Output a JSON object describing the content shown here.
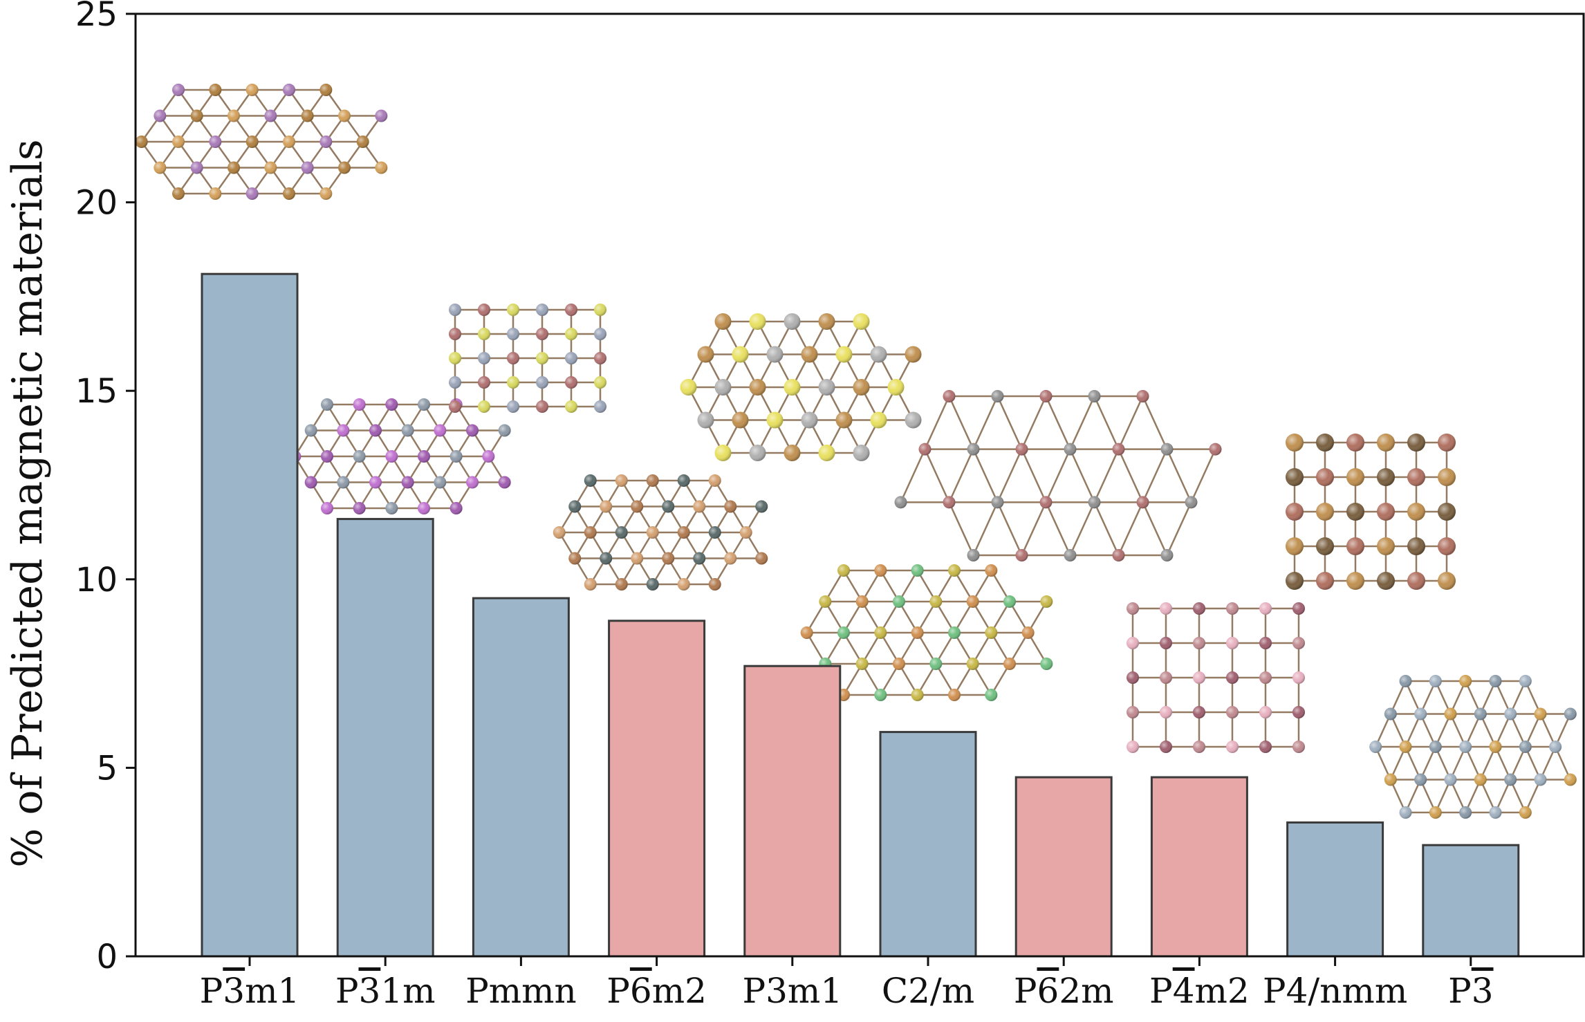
{
  "chart_data": {
    "type": "bar",
    "ylabel": "% of Predicted magnetic materials",
    "xlabel": "",
    "ylim": [
      0,
      25
    ],
    "yticks": [
      0,
      5,
      10,
      15,
      20,
      25
    ],
    "grid": false,
    "categories": [
      {
        "name": "P",
        "over": "3",
        "rest": "m1"
      },
      {
        "name": "P",
        "over": "3",
        "rest": "1m"
      },
      {
        "name": "Pmmn",
        "over": "",
        "rest": ""
      },
      {
        "name": "P",
        "over": "6",
        "rest": "m2"
      },
      {
        "name": "P3m1",
        "over": "",
        "rest": ""
      },
      {
        "name": "C2/m",
        "over": "",
        "rest": ""
      },
      {
        "name": "P",
        "over": "6",
        "rest": "2m"
      },
      {
        "name": "P",
        "over": "4",
        "rest": "m2"
      },
      {
        "name": "P4/nmm",
        "over": "",
        "rest": ""
      },
      {
        "name": "P",
        "over": "3",
        "rest": ""
      }
    ],
    "values": [
      18.1,
      11.6,
      9.5,
      8.9,
      7.7,
      5.95,
      4.75,
      4.75,
      3.55,
      2.95
    ],
    "bar_colors": [
      "#9db5c8",
      "#9db5c8",
      "#9db5c8",
      "#e8a7a7",
      "#e8a7a7",
      "#9db5c8",
      "#e8a7a7",
      "#e8a7a7",
      "#9db5c8",
      "#9db5c8"
    ],
    "colors": {
      "blue_bar": "#9db5c8",
      "red_bar": "#e8a7a7",
      "bar_edge": "#3a3a3a",
      "axis": "#111111"
    },
    "structure_insets": [
      {
        "bar": 0,
        "lattice": "honeycomb",
        "atoms": [
          "#d4a05a",
          "#a87ab8",
          "#b08040"
        ]
      },
      {
        "bar": 1,
        "lattice": "honeycomb",
        "atoms": [
          "#a05cb0",
          "#8e9aa8",
          "#c070d0"
        ]
      },
      {
        "bar": 2,
        "lattice": "rectangular",
        "atoms": [
          "#9aa4b8",
          "#b07070",
          "#d8d860"
        ]
      },
      {
        "bar": 3,
        "lattice": "hexagonal-dense",
        "atoms": [
          "#b07a50",
          "#5a6a6a",
          "#d4a070"
        ]
      },
      {
        "bar": 4,
        "lattice": "honeycomb",
        "atoms": [
          "#b0b0b0",
          "#c09050",
          "#e8e060"
        ]
      },
      {
        "bar": 5,
        "lattice": "honeycomb",
        "atoms": [
          "#70c080",
          "#c8b848",
          "#d09050"
        ]
      },
      {
        "bar": 6,
        "lattice": "kagome",
        "atoms": [
          "#909090",
          "#b07070"
        ]
      },
      {
        "bar": 7,
        "lattice": "square",
        "atoms": [
          "#c08a90",
          "#e8b0c0",
          "#a06070"
        ]
      },
      {
        "bar": 8,
        "lattice": "square-dense",
        "atoms": [
          "#c09050",
          "#7a6040",
          "#b07060"
        ]
      },
      {
        "bar": 9,
        "lattice": "honeycomb",
        "atoms": [
          "#d0a050",
          "#8a9aa8",
          "#a0b0c0"
        ]
      }
    ]
  }
}
